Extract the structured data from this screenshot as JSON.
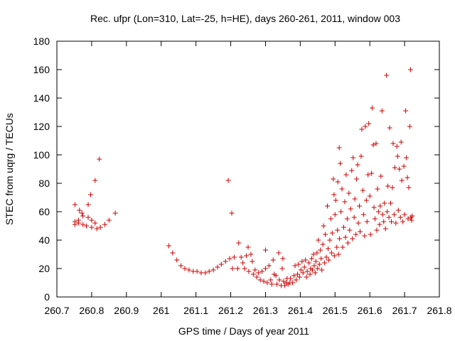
{
  "chart_data": {
    "type": "scatter",
    "title": "Rec. ufpr (Lon=310, Lat=-25, h=HE), days 260-261, 2011, window 003",
    "xlabel": "GPS time / Days of year 2011",
    "ylabel": "STEC from uqrg / TECUs",
    "xlim": [
      260.7,
      261.8
    ],
    "ylim": [
      0,
      180
    ],
    "x_ticks": [
      "260.7",
      "260.8",
      "260.9",
      "261",
      "261.1",
      "261.2",
      "261.3",
      "261.4",
      "261.5",
      "261.6",
      "261.7",
      "261.8"
    ],
    "y_ticks": [
      "0",
      "20",
      "40",
      "60",
      "80",
      "100",
      "120",
      "140",
      "160",
      "180"
    ],
    "grid": false,
    "legend": "none",
    "marker": "+",
    "marker_color": "#cc0000",
    "points": [
      [
        260.752,
        65
      ],
      [
        260.752,
        53
      ],
      [
        260.752,
        51
      ],
      [
        260.762,
        54
      ],
      [
        260.762,
        52
      ],
      [
        260.765,
        61
      ],
      [
        260.772,
        59
      ],
      [
        260.775,
        57
      ],
      [
        260.775,
        51
      ],
      [
        260.785,
        50
      ],
      [
        260.79,
        65
      ],
      [
        260.79,
        56
      ],
      [
        260.797,
        72
      ],
      [
        260.8,
        54
      ],
      [
        260.8,
        49
      ],
      [
        260.81,
        82
      ],
      [
        260.81,
        52
      ],
      [
        260.815,
        48
      ],
      [
        260.822,
        97
      ],
      [
        260.825,
        49
      ],
      [
        260.838,
        51
      ],
      [
        260.85,
        54
      ],
      [
        260.868,
        59
      ],
      [
        261.022,
        36
      ],
      [
        261.033,
        31
      ],
      [
        261.045,
        26
      ],
      [
        261.057,
        22
      ],
      [
        261.068,
        20
      ],
      [
        261.08,
        19
      ],
      [
        261.092,
        18
      ],
      [
        261.103,
        18
      ],
      [
        261.115,
        17
      ],
      [
        261.127,
        17
      ],
      [
        261.138,
        18
      ],
      [
        261.15,
        19
      ],
      [
        261.162,
        21
      ],
      [
        261.173,
        23
      ],
      [
        261.185,
        25
      ],
      [
        261.193,
        82
      ],
      [
        261.197,
        27
      ],
      [
        261.203,
        59
      ],
      [
        261.205,
        20
      ],
      [
        261.21,
        28
      ],
      [
        261.22,
        20
      ],
      [
        261.223,
        38
      ],
      [
        261.23,
        28
      ],
      [
        261.235,
        24
      ],
      [
        261.24,
        20
      ],
      [
        261.245,
        29
      ],
      [
        261.25,
        35
      ],
      [
        261.252,
        18
      ],
      [
        261.258,
        30
      ],
      [
        261.262,
        25
      ],
      [
        261.265,
        16
      ],
      [
        261.27,
        19
      ],
      [
        261.275,
        14
      ],
      [
        261.28,
        17
      ],
      [
        261.285,
        12
      ],
      [
        261.29,
        18
      ],
      [
        261.295,
        11
      ],
      [
        261.3,
        33
      ],
      [
        261.3,
        20
      ],
      [
        261.305,
        10
      ],
      [
        261.31,
        22
      ],
      [
        261.315,
        12
      ],
      [
        261.318,
        9
      ],
      [
        261.322,
        26
      ],
      [
        261.325,
        16
      ],
      [
        261.33,
        15
      ],
      [
        261.333,
        9
      ],
      [
        261.338,
        31
      ],
      [
        261.34,
        12
      ],
      [
        261.345,
        8
      ],
      [
        261.348,
        20
      ],
      [
        261.35,
        27
      ],
      [
        261.352,
        11
      ],
      [
        261.355,
        8
      ],
      [
        261.36,
        10
      ],
      [
        261.362,
        13
      ],
      [
        261.365,
        9
      ],
      [
        261.37,
        10
      ],
      [
        261.372,
        13
      ],
      [
        261.378,
        10
      ],
      [
        261.382,
        15
      ],
      [
        261.385,
        22
      ],
      [
        261.388,
        12
      ],
      [
        261.392,
        16
      ],
      [
        261.395,
        23
      ],
      [
        261.398,
        14
      ],
      [
        261.402,
        19
      ],
      [
        261.405,
        25
      ],
      [
        261.408,
        17
      ],
      [
        261.412,
        21
      ],
      [
        261.415,
        26
      ],
      [
        261.418,
        14
      ],
      [
        261.42,
        18
      ],
      [
        261.425,
        24
      ],
      [
        261.428,
        16
      ],
      [
        261.43,
        20
      ],
      [
        261.433,
        27
      ],
      [
        261.435,
        19
      ],
      [
        261.438,
        30
      ],
      [
        261.44,
        22
      ],
      [
        261.443,
        17
      ],
      [
        261.445,
        25
      ],
      [
        261.448,
        31
      ],
      [
        261.45,
        20
      ],
      [
        261.452,
        40
      ],
      [
        261.455,
        23
      ],
      [
        261.458,
        33
      ],
      [
        261.46,
        27
      ],
      [
        261.462,
        19
      ],
      [
        261.465,
        37
      ],
      [
        261.467,
        50
      ],
      [
        261.47,
        24
      ],
      [
        261.472,
        44
      ],
      [
        261.475,
        28
      ],
      [
        261.478,
        64
      ],
      [
        261.48,
        34
      ],
      [
        261.482,
        26
      ],
      [
        261.485,
        40
      ],
      [
        261.488,
        55
      ],
      [
        261.49,
        31
      ],
      [
        261.492,
        45
      ],
      [
        261.495,
        83
      ],
      [
        261.497,
        72
      ],
      [
        261.498,
        29
      ],
      [
        261.5,
        58
      ],
      [
        261.502,
        68
      ],
      [
        261.505,
        35
      ],
      [
        261.507,
        47
      ],
      [
        261.508,
        81
      ],
      [
        261.51,
        30
      ],
      [
        261.512,
        105
      ],
      [
        261.513,
        41
      ],
      [
        261.515,
        94
      ],
      [
        261.517,
        60
      ],
      [
        261.52,
        76
      ],
      [
        261.522,
        35
      ],
      [
        261.525,
        49
      ],
      [
        261.528,
        67
      ],
      [
        261.53,
        42
      ],
      [
        261.532,
        86
      ],
      [
        261.535,
        55
      ],
      [
        261.537,
        38
      ],
      [
        261.54,
        73
      ],
      [
        261.542,
        47
      ],
      [
        261.545,
        62
      ],
      [
        261.548,
        89
      ],
      [
        261.55,
        41
      ],
      [
        261.552,
        98
      ],
      [
        261.555,
        56
      ],
      [
        261.557,
        69
      ],
      [
        261.56,
        44
      ],
      [
        261.562,
        83
      ],
      [
        261.565,
        93
      ],
      [
        261.567,
        52
      ],
      [
        261.57,
        64
      ],
      [
        261.572,
        46
      ],
      [
        261.575,
        99
      ],
      [
        261.577,
        118
      ],
      [
        261.58,
        75
      ],
      [
        261.582,
        58
      ],
      [
        261.585,
        43
      ],
      [
        261.587,
        120
      ],
      [
        261.59,
        68
      ],
      [
        261.592,
        53
      ],
      [
        261.595,
        86
      ],
      [
        261.597,
        122
      ],
      [
        261.6,
        71
      ],
      [
        261.602,
        44
      ],
      [
        261.605,
        87
      ],
      [
        261.607,
        133
      ],
      [
        261.61,
        107
      ],
      [
        261.612,
        63
      ],
      [
        261.615,
        55
      ],
      [
        261.618,
        108
      ],
      [
        261.62,
        47
      ],
      [
        261.622,
        76
      ],
      [
        261.625,
        60
      ],
      [
        261.628,
        51
      ],
      [
        261.63,
        64
      ],
      [
        261.632,
        85
      ],
      [
        261.635,
        131
      ],
      [
        261.637,
        58
      ],
      [
        261.64,
        53
      ],
      [
        261.642,
        66
      ],
      [
        261.645,
        48
      ],
      [
        261.648,
        156
      ],
      [
        261.65,
        60
      ],
      [
        261.652,
        78
      ],
      [
        261.655,
        56
      ],
      [
        261.657,
        119
      ],
      [
        261.66,
        66
      ],
      [
        261.662,
        53
      ],
      [
        261.665,
        77
      ],
      [
        261.667,
        108
      ],
      [
        261.67,
        58
      ],
      [
        261.672,
        91
      ],
      [
        261.675,
        52
      ],
      [
        261.678,
        106
      ],
      [
        261.68,
        99
      ],
      [
        261.682,
        61
      ],
      [
        261.685,
        90
      ],
      [
        261.688,
        56
      ],
      [
        261.69,
        109
      ],
      [
        261.692,
        82
      ],
      [
        261.695,
        53
      ],
      [
        261.698,
        92
      ],
      [
        261.7,
        58
      ],
      [
        261.703,
        131
      ],
      [
        261.705,
        98
      ],
      [
        261.708,
        84
      ],
      [
        261.71,
        55
      ],
      [
        261.712,
        77
      ],
      [
        261.715,
        120
      ],
      [
        261.717,
        160
      ],
      [
        261.718,
        56
      ],
      [
        261.72,
        54
      ],
      [
        261.722,
        57
      ]
    ]
  }
}
